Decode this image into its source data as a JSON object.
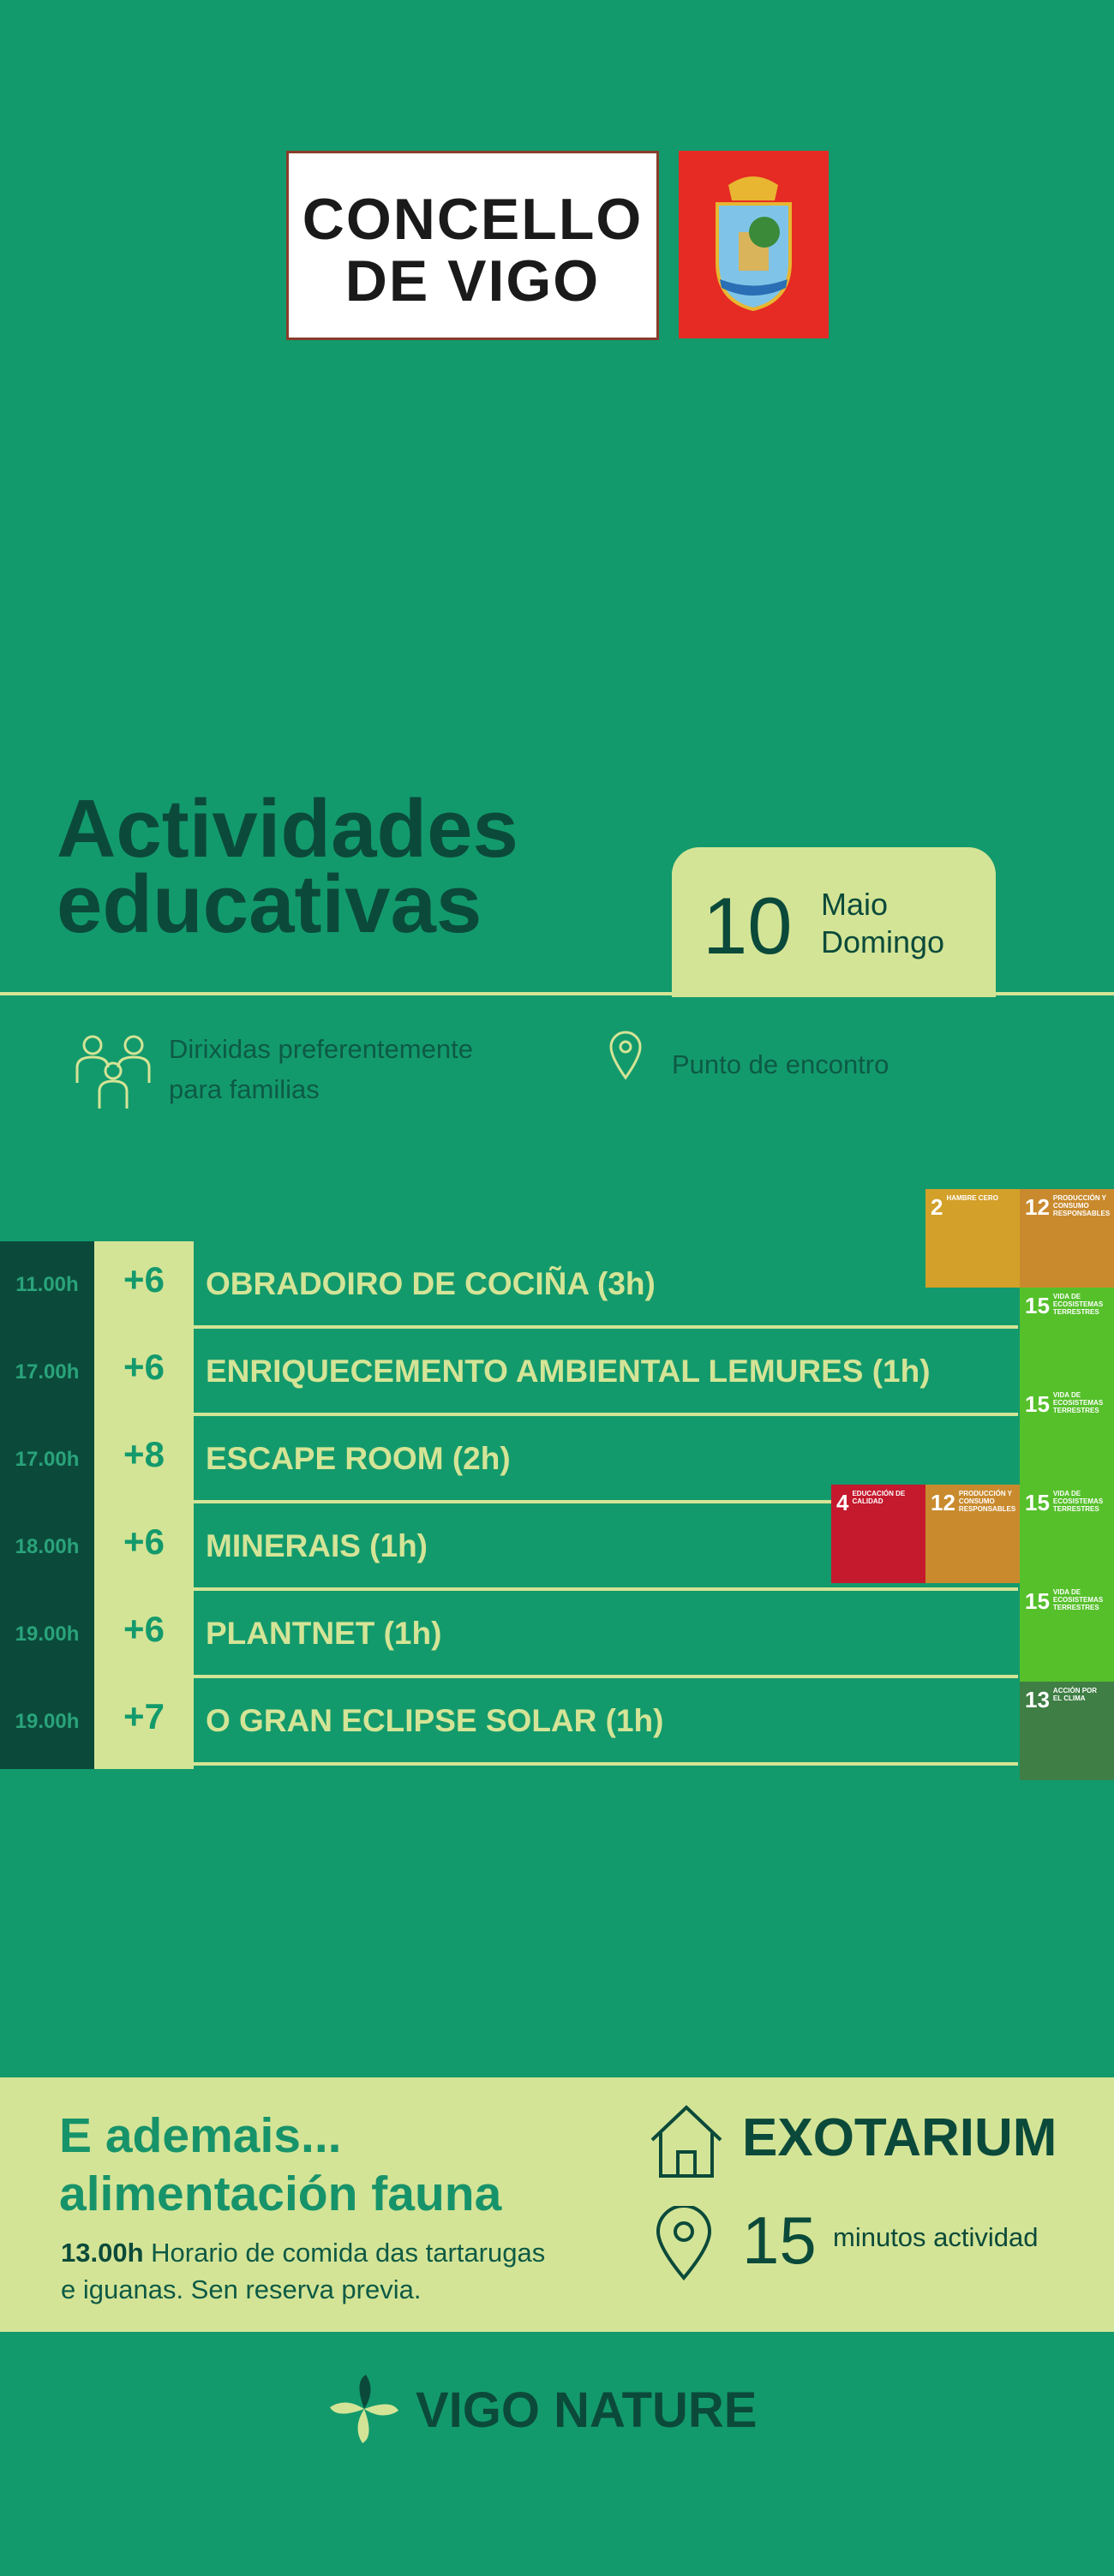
{
  "header": {
    "logo_line1": "CONCELLO",
    "logo_line2": "DE VIGO"
  },
  "title_line1": "Actividades",
  "title_line2": "educativas",
  "date": {
    "day": "10",
    "month": "Maio",
    "weekday": "Domingo"
  },
  "info": {
    "audience_line1": "Dirixidas preferentemente",
    "audience_line2": "para familias",
    "meeting": "Punto de encontro"
  },
  "activities": [
    {
      "time": "11.00h",
      "participants": "+6",
      "name": "OBRADOIRO DE COCIÑA (3h)",
      "sdgs": [
        {
          "number": "2",
          "label": "HAMBRE CERO",
          "color": "#d3a029"
        },
        {
          "number": "12",
          "label": "PRODUCCIÓN Y CONSUMO RESPONSABLES",
          "color": "#c98a2e"
        }
      ]
    },
    {
      "time": "17.00h",
      "participants": "+6",
      "name": "ENRIQUECEMENTO AMBIENTAL LEMURES (1h)",
      "sdgs": [
        {
          "number": "15",
          "label": "VIDA DE ECOSISTEMAS TERRESTRES",
          "color": "#56c02b"
        }
      ]
    },
    {
      "time": "17.00h",
      "participants": "+8",
      "name": "ESCAPE ROOM (2h)",
      "sdgs": [
        {
          "number": "15",
          "label": "VIDA DE ECOSISTEMAS TERRESTRES",
          "color": "#56c02b"
        }
      ]
    },
    {
      "time": "18.00h",
      "participants": "+6",
      "name": "MINERAIS (1h)",
      "sdgs": [
        {
          "number": "4",
          "label": "EDUCACIÓN DE CALIDAD",
          "color": "#c5192d"
        },
        {
          "number": "12",
          "label": "PRODUCCIÓN Y CONSUMO RESPONSABLES",
          "color": "#c98a2e"
        },
        {
          "number": "15",
          "label": "VIDA DE ECOSISTEMAS TERRESTRES",
          "color": "#56c02b"
        }
      ]
    },
    {
      "time": "19.00h",
      "participants": "+6",
      "name": "PLANTNET (1h)",
      "sdgs": [
        {
          "number": "15",
          "label": "VIDA DE ECOSISTEMAS TERRESTRES",
          "color": "#56c02b"
        }
      ]
    },
    {
      "time": "19.00h",
      "participants": "+7",
      "name": "O GRAN ECLIPSE SOLAR (1h)",
      "sdgs": [
        {
          "number": "13",
          "label": "ACCIÓN POR EL CLIMA",
          "color": "#3f7e44"
        }
      ]
    }
  ],
  "extra": {
    "heading_line1": "E ademais...",
    "heading_line2": "alimentación fauna",
    "time": "13.00h",
    "text_line1": "Horario de comida das tartarugas",
    "text_line2": "e iguanas. Sen reserva previa.",
    "place": "EXOTARIUM",
    "minutes": "15",
    "minutes_label": "minutos actividad"
  },
  "footer": {
    "brand": "VIGO NATURE"
  }
}
